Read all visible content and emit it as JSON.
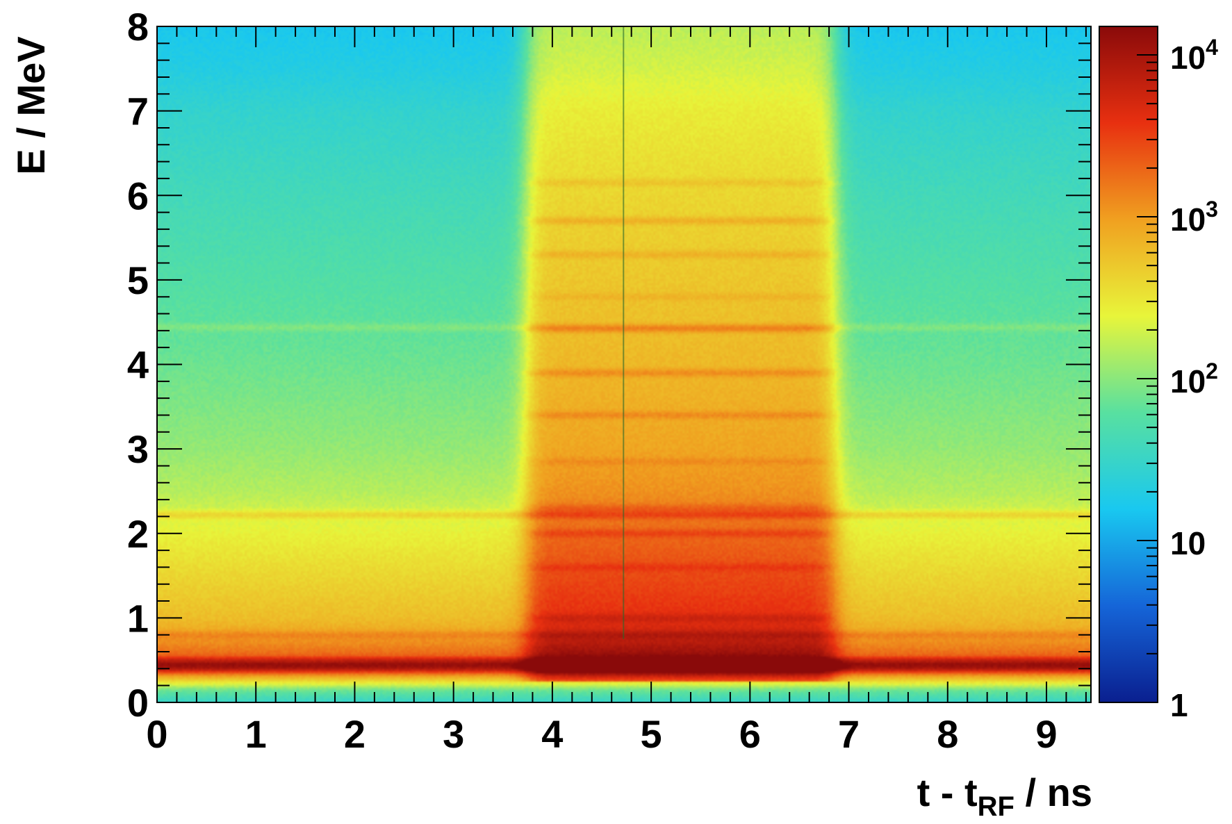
{
  "chart_data": {
    "type": "heatmap",
    "title": "",
    "xlabel": {
      "main": "t - t",
      "sub": "RF",
      "unit": " / ns"
    },
    "ylabel": "E / MeV",
    "xlim": [
      0,
      9.45
    ],
    "ylim": [
      0,
      8
    ],
    "x_ticks": [
      0,
      1,
      2,
      3,
      4,
      5,
      6,
      7,
      8,
      9
    ],
    "y_ticks": [
      0,
      1,
      2,
      3,
      4,
      5,
      6,
      7,
      8
    ],
    "x_tick_labels": [
      "0",
      "1",
      "2",
      "3",
      "4",
      "5",
      "6",
      "7",
      "8",
      "9"
    ],
    "y_tick_labels": [
      "0",
      "1",
      "2",
      "3",
      "4",
      "5",
      "6",
      "7",
      "8"
    ],
    "z_scale": "log",
    "zlim": [
      1,
      15000
    ],
    "colorbar": {
      "ticks": [
        {
          "value": 1,
          "base": "1",
          "exp": ""
        },
        {
          "value": 10,
          "base": "10",
          "exp": ""
        },
        {
          "value": 100,
          "base": "10",
          "exp": "2"
        },
        {
          "value": 1000,
          "base": "10",
          "exp": "3"
        },
        {
          "value": 10000,
          "base": "10",
          "exp": "4"
        }
      ],
      "colors": [
        "#0a1f8f",
        "#1565d8",
        "#19c8f0",
        "#58e0a0",
        "#e8f53a",
        "#f0a020",
        "#e83010",
        "#8a0a0a"
      ]
    },
    "background_counts": [
      {
        "E": 0.0,
        "counts": 30
      },
      {
        "E": 0.15,
        "counts": 80
      },
      {
        "E": 0.3,
        "counts": 800
      },
      {
        "E": 0.45,
        "counts": 9000
      },
      {
        "E": 0.55,
        "counts": 2000
      },
      {
        "E": 0.8,
        "counts": 900
      },
      {
        "E": 1.0,
        "counts": 600
      },
      {
        "E": 1.5,
        "counts": 400
      },
      {
        "E": 2.0,
        "counts": 260
      },
      {
        "E": 2.5,
        "counts": 150
      },
      {
        "E": 3.0,
        "counts": 110
      },
      {
        "E": 4.0,
        "counts": 75
      },
      {
        "E": 5.0,
        "counts": 55
      },
      {
        "E": 6.0,
        "counts": 40
      },
      {
        "E": 7.0,
        "counts": 28
      },
      {
        "E": 7.5,
        "counts": 20
      },
      {
        "E": 8.0,
        "counts": 16
      }
    ],
    "pulse": {
      "t_start": 3.8,
      "t_end": 6.8,
      "edge_width": 0.18,
      "factor_low_E": 6,
      "factor_high_E": 10
    },
    "lines": [
      {
        "E": 0.4,
        "counts_factor": 2.2,
        "full_width": true
      },
      {
        "E": 0.5,
        "counts_factor": 1.6,
        "full_width": true
      },
      {
        "E": 0.8,
        "counts_factor": 1.5,
        "full_width": true
      },
      {
        "E": 2.22,
        "counts_factor": 2.0,
        "full_width": true
      },
      {
        "E": 4.44,
        "counts_factor": 1.4,
        "full_width": true
      },
      {
        "E": 1.0,
        "counts_factor": 1.5,
        "full_width": false
      },
      {
        "E": 1.6,
        "counts_factor": 1.4,
        "full_width": false
      },
      {
        "E": 2.0,
        "counts_factor": 1.6,
        "full_width": false
      },
      {
        "E": 2.3,
        "counts_factor": 1.5,
        "full_width": false
      },
      {
        "E": 2.85,
        "counts_factor": 1.3,
        "full_width": false
      },
      {
        "E": 3.4,
        "counts_factor": 1.6,
        "full_width": false
      },
      {
        "E": 3.9,
        "counts_factor": 1.8,
        "full_width": false
      },
      {
        "E": 4.42,
        "counts_factor": 1.8,
        "full_width": false
      },
      {
        "E": 4.8,
        "counts_factor": 1.3,
        "full_width": false
      },
      {
        "E": 5.3,
        "counts_factor": 1.5,
        "full_width": false
      },
      {
        "E": 5.7,
        "counts_factor": 1.7,
        "full_width": false
      },
      {
        "E": 6.15,
        "counts_factor": 1.4,
        "full_width": false
      }
    ],
    "marker_line": {
      "t": 4.72,
      "E_min": 0.75,
      "E_max": 8.0,
      "color": "#2a6a2a"
    }
  }
}
